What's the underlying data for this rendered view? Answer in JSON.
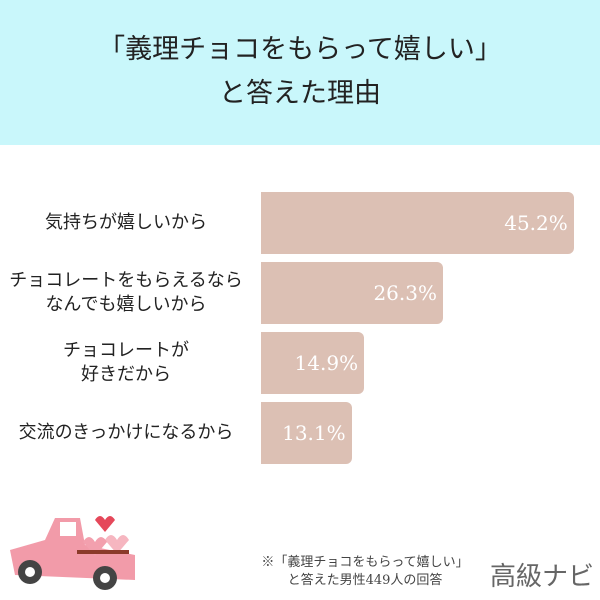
{
  "title": {
    "line1": "「義理チョコをもらって嬉しい」",
    "line2": "と答えた理由"
  },
  "chart_data": {
    "type": "bar",
    "orientation": "horizontal",
    "categories": [
      "気持ちが嬉しいから",
      "チョコレートをもらえるなら\nなんでも嬉しいから",
      "チョコレートが\n好きだから",
      "交流のきっかけになるから"
    ],
    "values": [
      45.2,
      26.3,
      14.9,
      13.1
    ],
    "value_labels": [
      "45.2%",
      "26.3%",
      "14.9%",
      "13.1%"
    ],
    "unit": "%",
    "bar_color": "#dcc0b4"
  },
  "note": "※「義理チョコをもらって嬉しい」\nと答えた男性449人の回答",
  "logo": "高級ナビ",
  "colors": {
    "header_bg": "#c9f7fb",
    "bar": "#dcc0b4"
  }
}
